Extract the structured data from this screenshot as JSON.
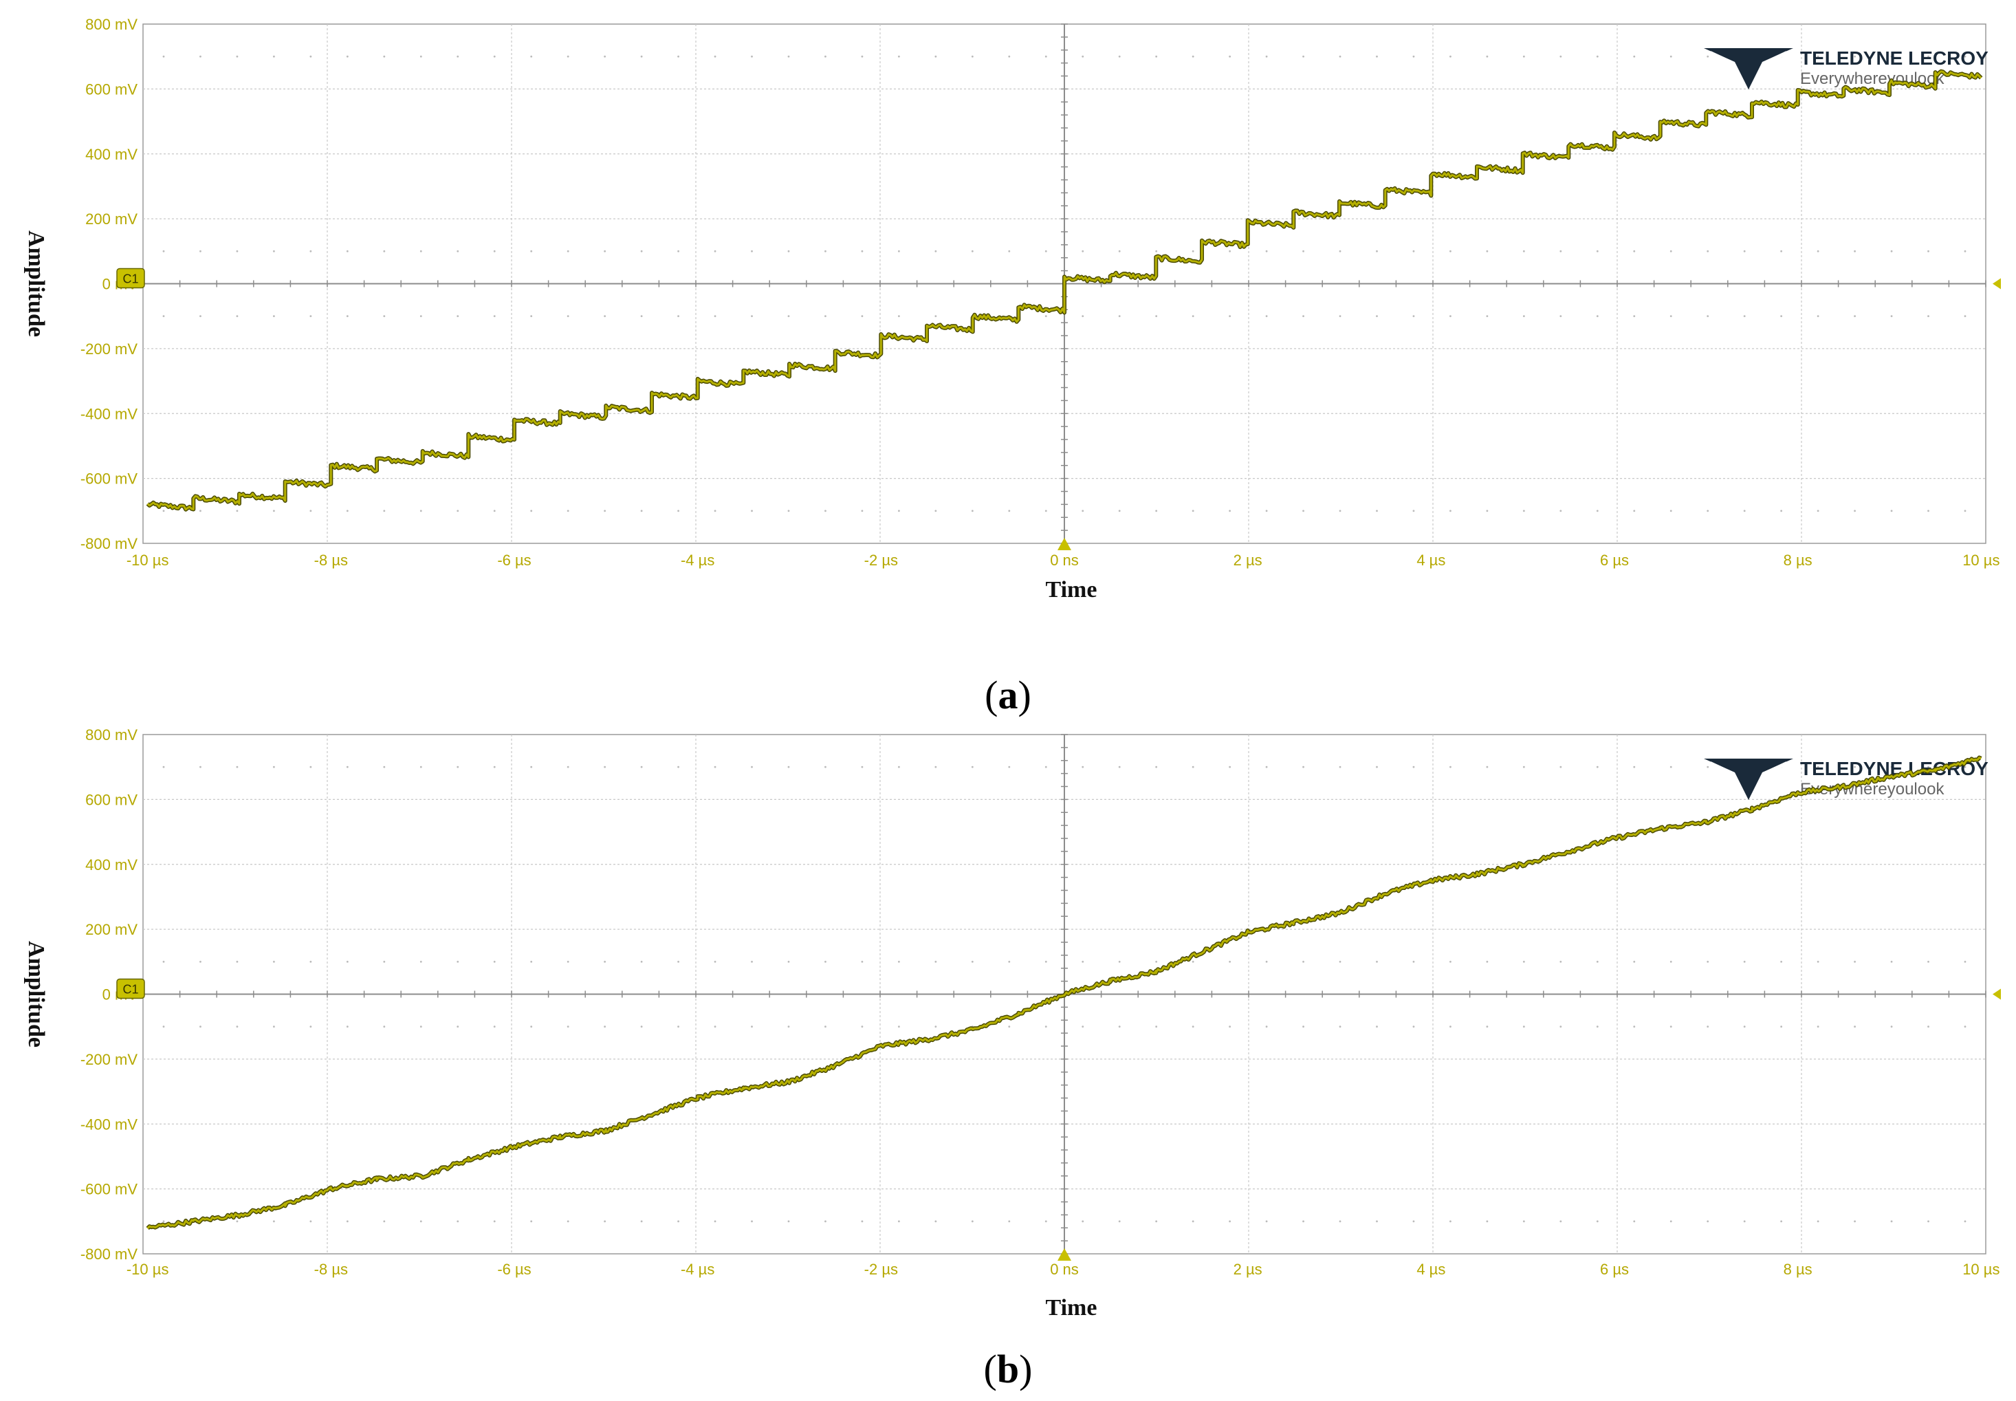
{
  "colors": {
    "trace": "#b5b000",
    "trace_dark": "#4a4a00",
    "tick_text": "#b5a800",
    "grid": "#c8c8c8",
    "axis": "#9a9a9a",
    "logo": "#1a2a3a",
    "badge": "#c8c000"
  },
  "chart_data": [
    {
      "type": "line",
      "panel_label": "(a)",
      "xlabel": "Time",
      "ylabel": "Amplitude",
      "xlim": [
        -10.05,
        10.05
      ],
      "ylim": [
        -800,
        800
      ],
      "x_unit": "µs",
      "y_unit": "mV",
      "x_ticks": [
        "-10 µs",
        "-8 µs",
        "-6 µs",
        "-4 µs",
        "-2 µs",
        "0 ns",
        "2 µs",
        "4 µs",
        "6 µs",
        "8 µs",
        "10 µs"
      ],
      "y_ticks": [
        "800 mV",
        "600 mV",
        "400 mV",
        "200 mV",
        "0 mV",
        "-200 mV",
        "-400 mV",
        "-600 mV",
        "-800 mV"
      ],
      "channel_badge": "C1",
      "logo": {
        "title": "TELEDYNE LECROY",
        "tagline": "Everywhereyoulook"
      },
      "grid": true,
      "series": [
        {
          "style": "staircase",
          "x": [
            -10.0,
            -9.5,
            -9.0,
            -8.5,
            -8.0,
            -7.5,
            -7.0,
            -6.5,
            -6.0,
            -5.5,
            -5.0,
            -4.5,
            -4.0,
            -3.5,
            -3.0,
            -2.5,
            -2.0,
            -1.5,
            -1.0,
            -0.5,
            0.0,
            0.5,
            1.0,
            1.5,
            2.0,
            2.5,
            3.0,
            3.5,
            4.0,
            4.5,
            5.0,
            5.5,
            6.0,
            6.5,
            7.0,
            7.5,
            8.0,
            8.5,
            9.0,
            9.5,
            10.0
          ],
          "y": [
            -680,
            -660,
            -650,
            -610,
            -560,
            -540,
            -520,
            -470,
            -420,
            -400,
            -380,
            -340,
            -300,
            -270,
            -250,
            -210,
            -160,
            -130,
            -100,
            -70,
            20,
            30,
            80,
            130,
            190,
            220,
            250,
            290,
            340,
            360,
            400,
            430,
            460,
            500,
            530,
            560,
            590,
            600,
            620,
            650,
            680
          ]
        }
      ]
    },
    {
      "type": "line",
      "panel_label": "(b)",
      "xlabel": "Time",
      "ylabel": "Amplitude",
      "xlim": [
        -10.05,
        10.05
      ],
      "ylim": [
        -800,
        800
      ],
      "x_unit": "µs",
      "y_unit": "mV",
      "x_ticks": [
        "-10 µs",
        "-8 µs",
        "-6 µs",
        "-4 µs",
        "-2 µs",
        "0 ns",
        "2 µs",
        "4 µs",
        "6 µs",
        "8 µs",
        "10 µs"
      ],
      "y_ticks": [
        "800 mV",
        "600 mV",
        "400 mV",
        "200 mV",
        "0 mV",
        "-200 mV",
        "-400 mV",
        "-600 mV",
        "-800 mV"
      ],
      "channel_badge": "C1",
      "logo": {
        "title": "TELEDYNE LECROY",
        "tagline": "Everywhereyoulook"
      },
      "grid": true,
      "series": [
        {
          "style": "smooth",
          "x": [
            -10.0,
            -9.5,
            -9.0,
            -8.5,
            -8.0,
            -7.5,
            -7.0,
            -6.5,
            -6.0,
            -5.5,
            -5.0,
            -4.5,
            -4.0,
            -3.5,
            -3.0,
            -2.5,
            -2.0,
            -1.5,
            -1.0,
            -0.5,
            0.0,
            0.5,
            1.0,
            1.5,
            2.0,
            2.5,
            3.0,
            3.5,
            4.0,
            4.5,
            5.0,
            5.5,
            6.0,
            6.5,
            7.0,
            7.5,
            8.0,
            8.5,
            9.0,
            9.5,
            10.0
          ],
          "y": [
            -720,
            -700,
            -680,
            -650,
            -600,
            -570,
            -560,
            -510,
            -470,
            -440,
            -420,
            -370,
            -320,
            -290,
            -270,
            -220,
            -160,
            -140,
            -110,
            -60,
            0,
            40,
            70,
            130,
            190,
            220,
            250,
            310,
            350,
            370,
            400,
            440,
            480,
            510,
            530,
            570,
            620,
            640,
            670,
            690,
            730
          ]
        }
      ]
    }
  ]
}
